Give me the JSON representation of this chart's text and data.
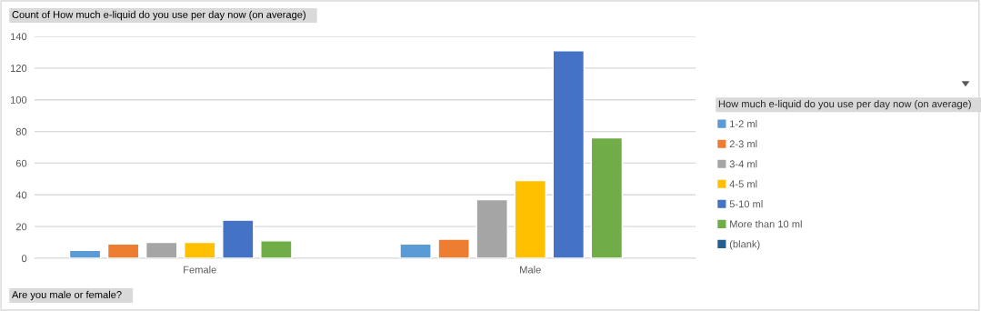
{
  "chart_data": {
    "type": "bar",
    "title": "Count of How much e-liquid do you use per day now (on average)",
    "xlabel": "Are you male or female?",
    "legend_title": "How much e-liquid do you use per day now (on average)",
    "categories": [
      "Female",
      "Male"
    ],
    "series": [
      {
        "name": "1-2 ml",
        "color": "#5b9bd5",
        "values": [
          5,
          9
        ]
      },
      {
        "name": "2-3 ml",
        "color": "#ed7d31",
        "values": [
          9,
          12
        ]
      },
      {
        "name": "3-4 ml",
        "color": "#a5a5a5",
        "values": [
          10,
          37
        ]
      },
      {
        "name": "4-5 ml",
        "color": "#ffc000",
        "values": [
          10,
          49
        ]
      },
      {
        "name": "5-10 ml",
        "color": "#4472c4",
        "values": [
          24,
          131
        ]
      },
      {
        "name": "More than 10 ml",
        "color": "#70ad47",
        "values": [
          11,
          76
        ]
      },
      {
        "name": "(blank)",
        "color": "#255e91",
        "values": [
          null,
          null
        ]
      }
    ],
    "ylim": [
      0,
      140
    ],
    "yticks": [
      0,
      20,
      40,
      60,
      80,
      100,
      120,
      140
    ],
    "grid": "y",
    "legend": "right"
  }
}
